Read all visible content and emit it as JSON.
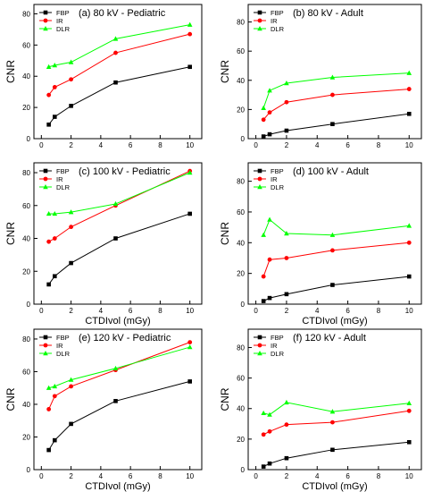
{
  "colors": {
    "FBP": "#000000",
    "IR": "#ff0000",
    "DLR": "#00ff00",
    "axis": "#000000"
  },
  "chart_data": [
    {
      "type": "line",
      "panel_label": "(a) 80 kV - Pediatric",
      "xlabel": "",
      "ylabel": "CNR",
      "xlim": [
        -0.5,
        10.8
      ],
      "ylim": [
        0,
        86
      ],
      "xticks": [
        0,
        2,
        4,
        6,
        8,
        10
      ],
      "yticks": [
        0,
        20,
        40,
        60,
        80
      ],
      "x": [
        0.5,
        0.9,
        2,
        5,
        10
      ],
      "legend_position": "top-left",
      "series": [
        {
          "name": "FBP",
          "marker": "square",
          "values": [
            9,
            14,
            21,
            36,
            46
          ]
        },
        {
          "name": "IR",
          "marker": "circle",
          "values": [
            28,
            33,
            38,
            55,
            67
          ]
        },
        {
          "name": "DLR",
          "marker": "triangle",
          "values": [
            46,
            47,
            49,
            64,
            73
          ]
        }
      ]
    },
    {
      "type": "line",
      "panel_label": "(b) 80 kV - Adult",
      "xlabel": "",
      "ylabel": "CNR",
      "xlim": [
        -0.5,
        10.8
      ],
      "ylim": [
        0,
        92
      ],
      "xticks": [
        0,
        2,
        4,
        6,
        8,
        10
      ],
      "yticks": [
        0,
        20,
        40,
        60,
        80
      ],
      "x": [
        0.5,
        0.9,
        2,
        5,
        10
      ],
      "legend_position": "top-left",
      "series": [
        {
          "name": "FBP",
          "marker": "square",
          "values": [
            1.5,
            3,
            5.5,
            10,
            17
          ]
        },
        {
          "name": "IR",
          "marker": "circle",
          "values": [
            13,
            18,
            25,
            30,
            34
          ]
        },
        {
          "name": "DLR",
          "marker": "triangle",
          "values": [
            21,
            33,
            38,
            42,
            45
          ]
        }
      ]
    },
    {
      "type": "line",
      "panel_label": "(c) 100 kV - Pediatric",
      "xlabel": "CTDIvol (mGy)",
      "ylabel": "CNR",
      "xlim": [
        -0.5,
        10.8
      ],
      "ylim": [
        0,
        86
      ],
      "xticks": [
        0,
        2,
        4,
        6,
        8,
        10
      ],
      "yticks": [
        0,
        20,
        40,
        60,
        80
      ],
      "x": [
        0.5,
        0.9,
        2,
        5,
        10
      ],
      "legend_position": "top-left",
      "series": [
        {
          "name": "FBP",
          "marker": "square",
          "values": [
            12,
            17,
            25,
            40,
            55
          ]
        },
        {
          "name": "IR",
          "marker": "circle",
          "values": [
            38,
            40,
            47,
            60,
            81
          ]
        },
        {
          "name": "DLR",
          "marker": "triangle",
          "values": [
            55,
            55,
            56,
            61,
            80
          ]
        }
      ]
    },
    {
      "type": "line",
      "panel_label": "(d) 100 kV - Adult",
      "xlabel": "CTDIvol (mGy)",
      "ylabel": "CNR",
      "xlim": [
        -0.5,
        10.8
      ],
      "ylim": [
        0,
        92
      ],
      "xticks": [
        0,
        2,
        4,
        6,
        8,
        10
      ],
      "yticks": [
        0,
        20,
        40,
        60,
        80
      ],
      "x": [
        0.5,
        0.9,
        2,
        5,
        10
      ],
      "legend_position": "top-left",
      "series": [
        {
          "name": "FBP",
          "marker": "square",
          "values": [
            2,
            4,
            6.5,
            12.5,
            18
          ]
        },
        {
          "name": "IR",
          "marker": "circle",
          "values": [
            18,
            29,
            30,
            35,
            40
          ]
        },
        {
          "name": "DLR",
          "marker": "triangle",
          "values": [
            45,
            55,
            46,
            45,
            51
          ]
        }
      ]
    },
    {
      "type": "line",
      "panel_label": "(e) 120 kV - Pediatric",
      "xlabel": "CTDIvol (mGy)",
      "ylabel": "CNR",
      "xlim": [
        -0.5,
        10.8
      ],
      "ylim": [
        0,
        86
      ],
      "xticks": [
        0,
        2,
        4,
        6,
        8,
        10
      ],
      "yticks": [
        0,
        20,
        40,
        60,
        80
      ],
      "x": [
        0.5,
        0.9,
        2,
        5,
        10
      ],
      "legend_position": "top-left",
      "series": [
        {
          "name": "FBP",
          "marker": "square",
          "values": [
            12,
            18,
            28,
            42,
            54
          ]
        },
        {
          "name": "IR",
          "marker": "circle",
          "values": [
            37,
            45,
            51,
            61,
            78
          ]
        },
        {
          "name": "DLR",
          "marker": "triangle",
          "values": [
            50,
            51,
            55,
            62,
            75
          ]
        }
      ]
    },
    {
      "type": "line",
      "panel_label": "(f) 120 kV - Adult",
      "xlabel": "CTDIvol (mGy)",
      "ylabel": "CNR",
      "xlim": [
        -0.5,
        10.8
      ],
      "ylim": [
        0,
        92
      ],
      "xticks": [
        0,
        2,
        4,
        6,
        8,
        10
      ],
      "yticks": [
        0,
        20,
        40,
        60,
        80
      ],
      "x": [
        0.5,
        0.9,
        2,
        5,
        10
      ],
      "legend_position": "top-left",
      "series": [
        {
          "name": "FBP",
          "marker": "square",
          "values": [
            2,
            4,
            7.5,
            13,
            18
          ]
        },
        {
          "name": "IR",
          "marker": "circle",
          "values": [
            23,
            25,
            29.5,
            31,
            38.5
          ]
        },
        {
          "name": "DLR",
          "marker": "triangle",
          "values": [
            37,
            36,
            44,
            38,
            43.5
          ]
        }
      ]
    }
  ]
}
